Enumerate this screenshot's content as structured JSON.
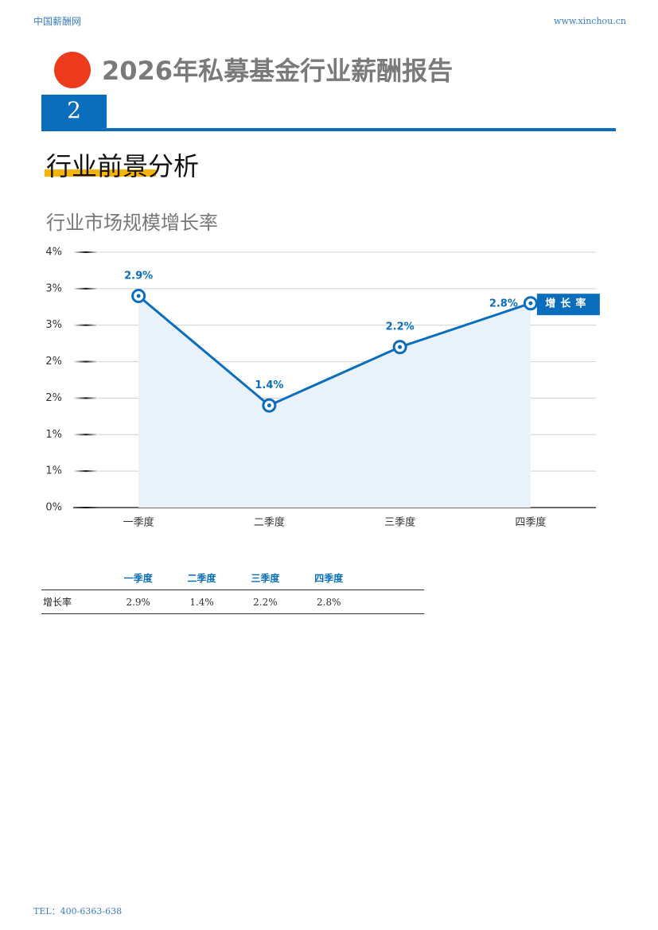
{
  "header": {
    "site": "中国薪酬网",
    "url": "www.xinchou.cn",
    "title": "2026年私募基金行业薪酬报告"
  },
  "section": {
    "number": "2",
    "title": "行业前景分析"
  },
  "chart_data": {
    "type": "line",
    "title": "行业市场规模增长率",
    "categories": [
      "一季度",
      "二季度",
      "三季度",
      "四季度"
    ],
    "series": [
      {
        "name": "增长率",
        "color": "#0a6ebd",
        "values": [
          2.9,
          1.4,
          2.2,
          2.8
        ],
        "value_labels": [
          "2.9%",
          "1.4%",
          "2.2%",
          "2.8%"
        ]
      }
    ],
    "ylim": [
      0,
      3.5
    ],
    "yticks": [
      {
        "value": 0,
        "label": "0%"
      },
      {
        "value": 0.5,
        "label": "1%"
      },
      {
        "value": 1,
        "label": "1%"
      },
      {
        "value": 1.5,
        "label": "2%"
      },
      {
        "value": 2,
        "label": "2%"
      },
      {
        "value": 2.5,
        "label": "3%"
      },
      {
        "value": 3,
        "label": "3%"
      },
      {
        "value": 3.5,
        "label": "4%"
      }
    ],
    "grid": true,
    "legend": "right"
  },
  "table": {
    "columns": [
      "一季度",
      "二季度",
      "三季度",
      "四季度"
    ],
    "rows": [
      [
        "增长率",
        "2.9%",
        "1.4%",
        "2.2%",
        "2.8%"
      ]
    ]
  },
  "footer": {
    "tel": "TEL：400-6363-638"
  }
}
